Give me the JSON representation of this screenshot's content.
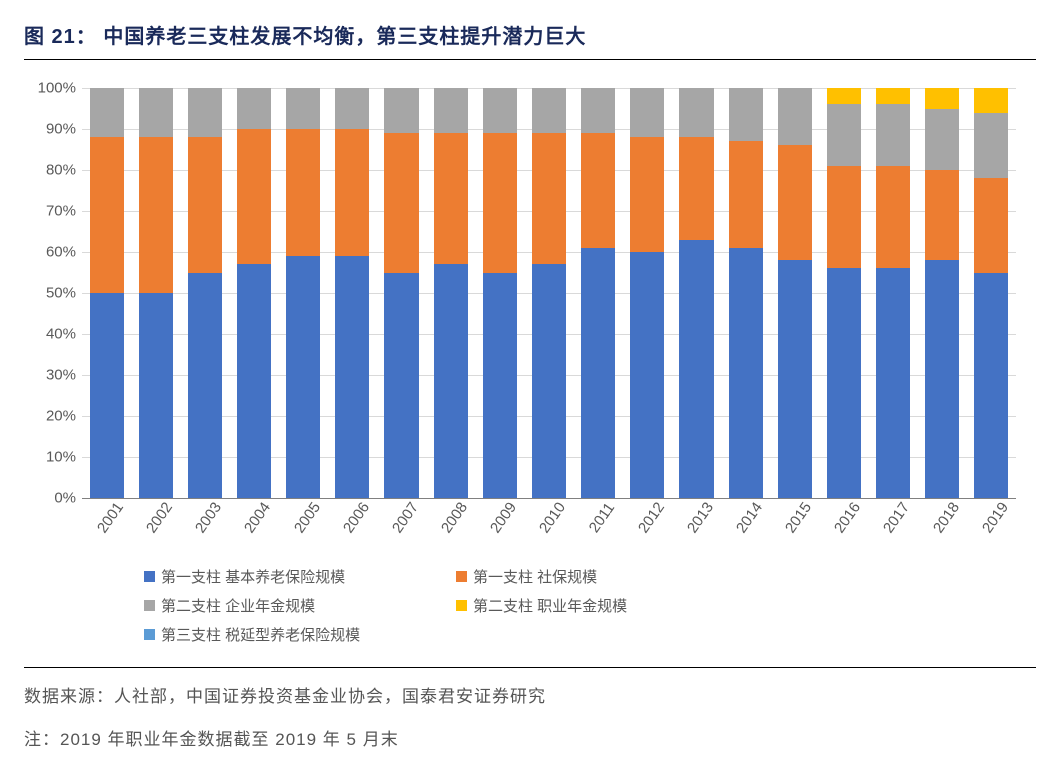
{
  "title_prefix": "图 21：",
  "title_text": "中国养老三支柱发展不均衡，第三支柱提升潜力巨大",
  "title_fontsize": 20,
  "title_color": "#1a2a5a",
  "source_label": "数据来源：人社部，中国证券投资基金业协会，国泰君安证券研究",
  "note_label": "注：2019 年职业年金数据截至 2019 年 5 月末",
  "footer_fontsize": 17,
  "chart": {
    "type": "stacked-bar-100",
    "background_color": "#ffffff",
    "grid_color": "#d9d9d9",
    "axis_color": "#808080",
    "tick_fontsize": 15,
    "tick_color": "#595959",
    "bar_width_pct": 72,
    "ylim": [
      0,
      100
    ],
    "ytick_step": 10,
    "ytick_suffix": "%",
    "categories": [
      "2001",
      "2002",
      "2003",
      "2004",
      "2005",
      "2006",
      "2007",
      "2008",
      "2009",
      "2010",
      "2011",
      "2012",
      "2013",
      "2014",
      "2015",
      "2016",
      "2017",
      "2018",
      "2019"
    ],
    "series": [
      {
        "name": "第一支柱 基本养老保险规模",
        "color": "#4472c4",
        "values": [
          50,
          50,
          55,
          57,
          59,
          59,
          55,
          57,
          55,
          57,
          61,
          60,
          63,
          61,
          58,
          56,
          56,
          58,
          55
        ]
      },
      {
        "name": "第一支柱 社保规模",
        "color": "#ed7d31",
        "values": [
          38,
          38,
          33,
          33,
          31,
          31,
          34,
          32,
          34,
          32,
          28,
          28,
          25,
          26,
          28,
          25,
          25,
          22,
          23
        ]
      },
      {
        "name": "第二支柱 企业年金规模",
        "color": "#a6a6a6",
        "values": [
          12,
          12,
          12,
          10,
          10,
          10,
          11,
          11,
          11,
          11,
          11,
          12,
          12,
          13,
          14,
          15,
          15,
          15,
          16
        ]
      },
      {
        "name": "第二支柱 职业年金规模",
        "color": "#ffc000",
        "values": [
          0,
          0,
          0,
          0,
          0,
          0,
          0,
          0,
          0,
          0,
          0,
          0,
          0,
          0,
          0,
          4,
          4,
          5,
          6
        ]
      },
      {
        "name": "第三支柱 税延型养老保险规模",
        "color": "#5b9bd5",
        "values": [
          0,
          0,
          0,
          0,
          0,
          0,
          0,
          0,
          0,
          0,
          0,
          0,
          0,
          0,
          0,
          0,
          0,
          0,
          0
        ]
      }
    ]
  }
}
